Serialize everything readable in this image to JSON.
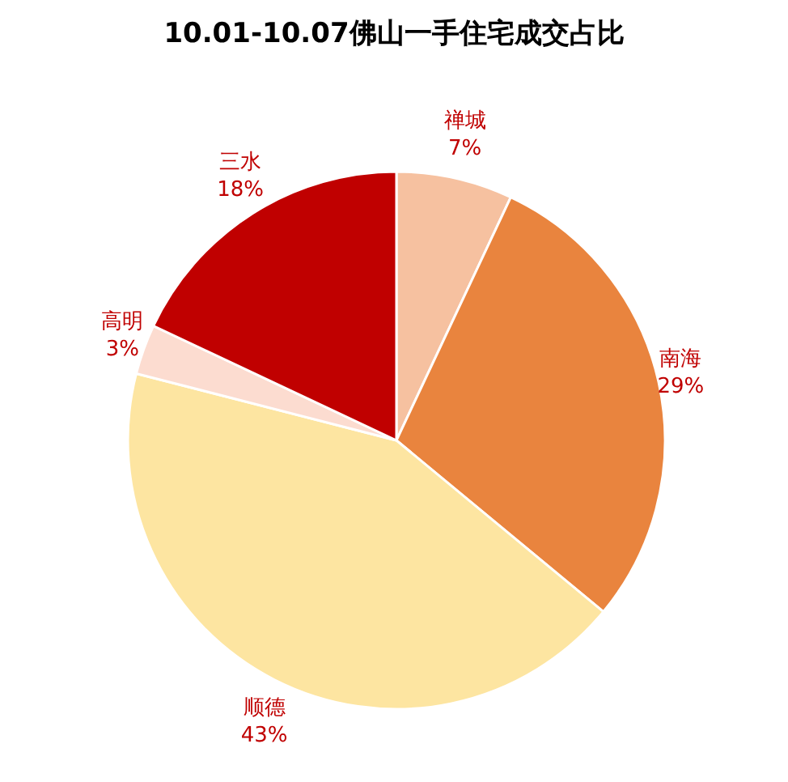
{
  "chart_data": {
    "type": "pie",
    "title": "10.01-10.07佛山一手住宅成交占比",
    "categories": [
      "禅城",
      "南海",
      "顺德",
      "高明",
      "三水"
    ],
    "values": [
      7,
      29,
      43,
      3,
      18
    ],
    "value_labels": [
      "7%",
      "29%",
      "43%",
      "3%",
      "18%"
    ],
    "colors": [
      "#f6c1a0",
      "#e9843e",
      "#fde5a1",
      "#fcdcd0",
      "#c00000"
    ]
  }
}
